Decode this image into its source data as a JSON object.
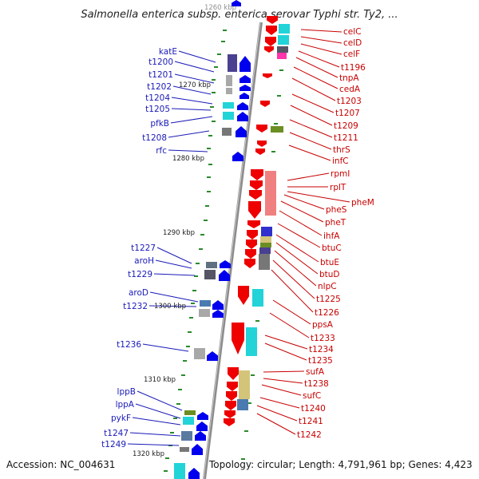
{
  "title": "Salmonella enterica subsp. enterica serovar Typhi str. Ty2, ...",
  "accession": "Accession: NC_004631",
  "topology": "Topology: circular; Length: 4,791,961 bp; Genes: 4,423",
  "colors": {
    "backbone": "#8c8c8c",
    "left_label": "#1a1ab8",
    "right_label": "#c80000",
    "minus_strand_gene": "#0000ee",
    "plus_strand_gene": "#ee0000",
    "cog_cyan": "#22d3d8",
    "cog_purple": "#4a4090",
    "cog_gray": "#a8a8a8",
    "cog_olive": "#6b8e23",
    "cog_pink": "#f08080",
    "cog_khaki": "#d4c47a",
    "cog_magenta": "#ff33aa",
    "tick_green": "#2a8a2a"
  },
  "scale_labels": [
    "1260 kbp",
    "1270 kbp",
    "1280 kbp",
    "1290 kbp",
    "1300 kbp",
    "1310 kbp",
    "1320 kbp"
  ],
  "left_genes": [
    "katE",
    "t1200",
    "t1201",
    "t1202",
    "t1204",
    "t1205",
    "pfkB",
    "t1208",
    "rfc",
    "t1227",
    "aroH",
    "t1229",
    "aroD",
    "t1232",
    "t1236",
    "lppB",
    "lppA",
    "pykF",
    "t1247",
    "t1249"
  ],
  "right_genes": [
    "celC",
    "celD",
    "celF",
    "t1196",
    "tnpA",
    "cedA",
    "t1203",
    "t1207",
    "t1209",
    "t1211",
    "thrS",
    "infC",
    "rpmI",
    "rplT",
    "pheM",
    "pheS",
    "pheT",
    "ihfA",
    "btuC",
    "btuE",
    "btuD",
    "nlpC",
    "t1225",
    "t1226",
    "ppsA",
    "t1233",
    "t1234",
    "t1235",
    "sufA",
    "t1238",
    "sufC",
    "t1240",
    "t1241",
    "t1242"
  ]
}
